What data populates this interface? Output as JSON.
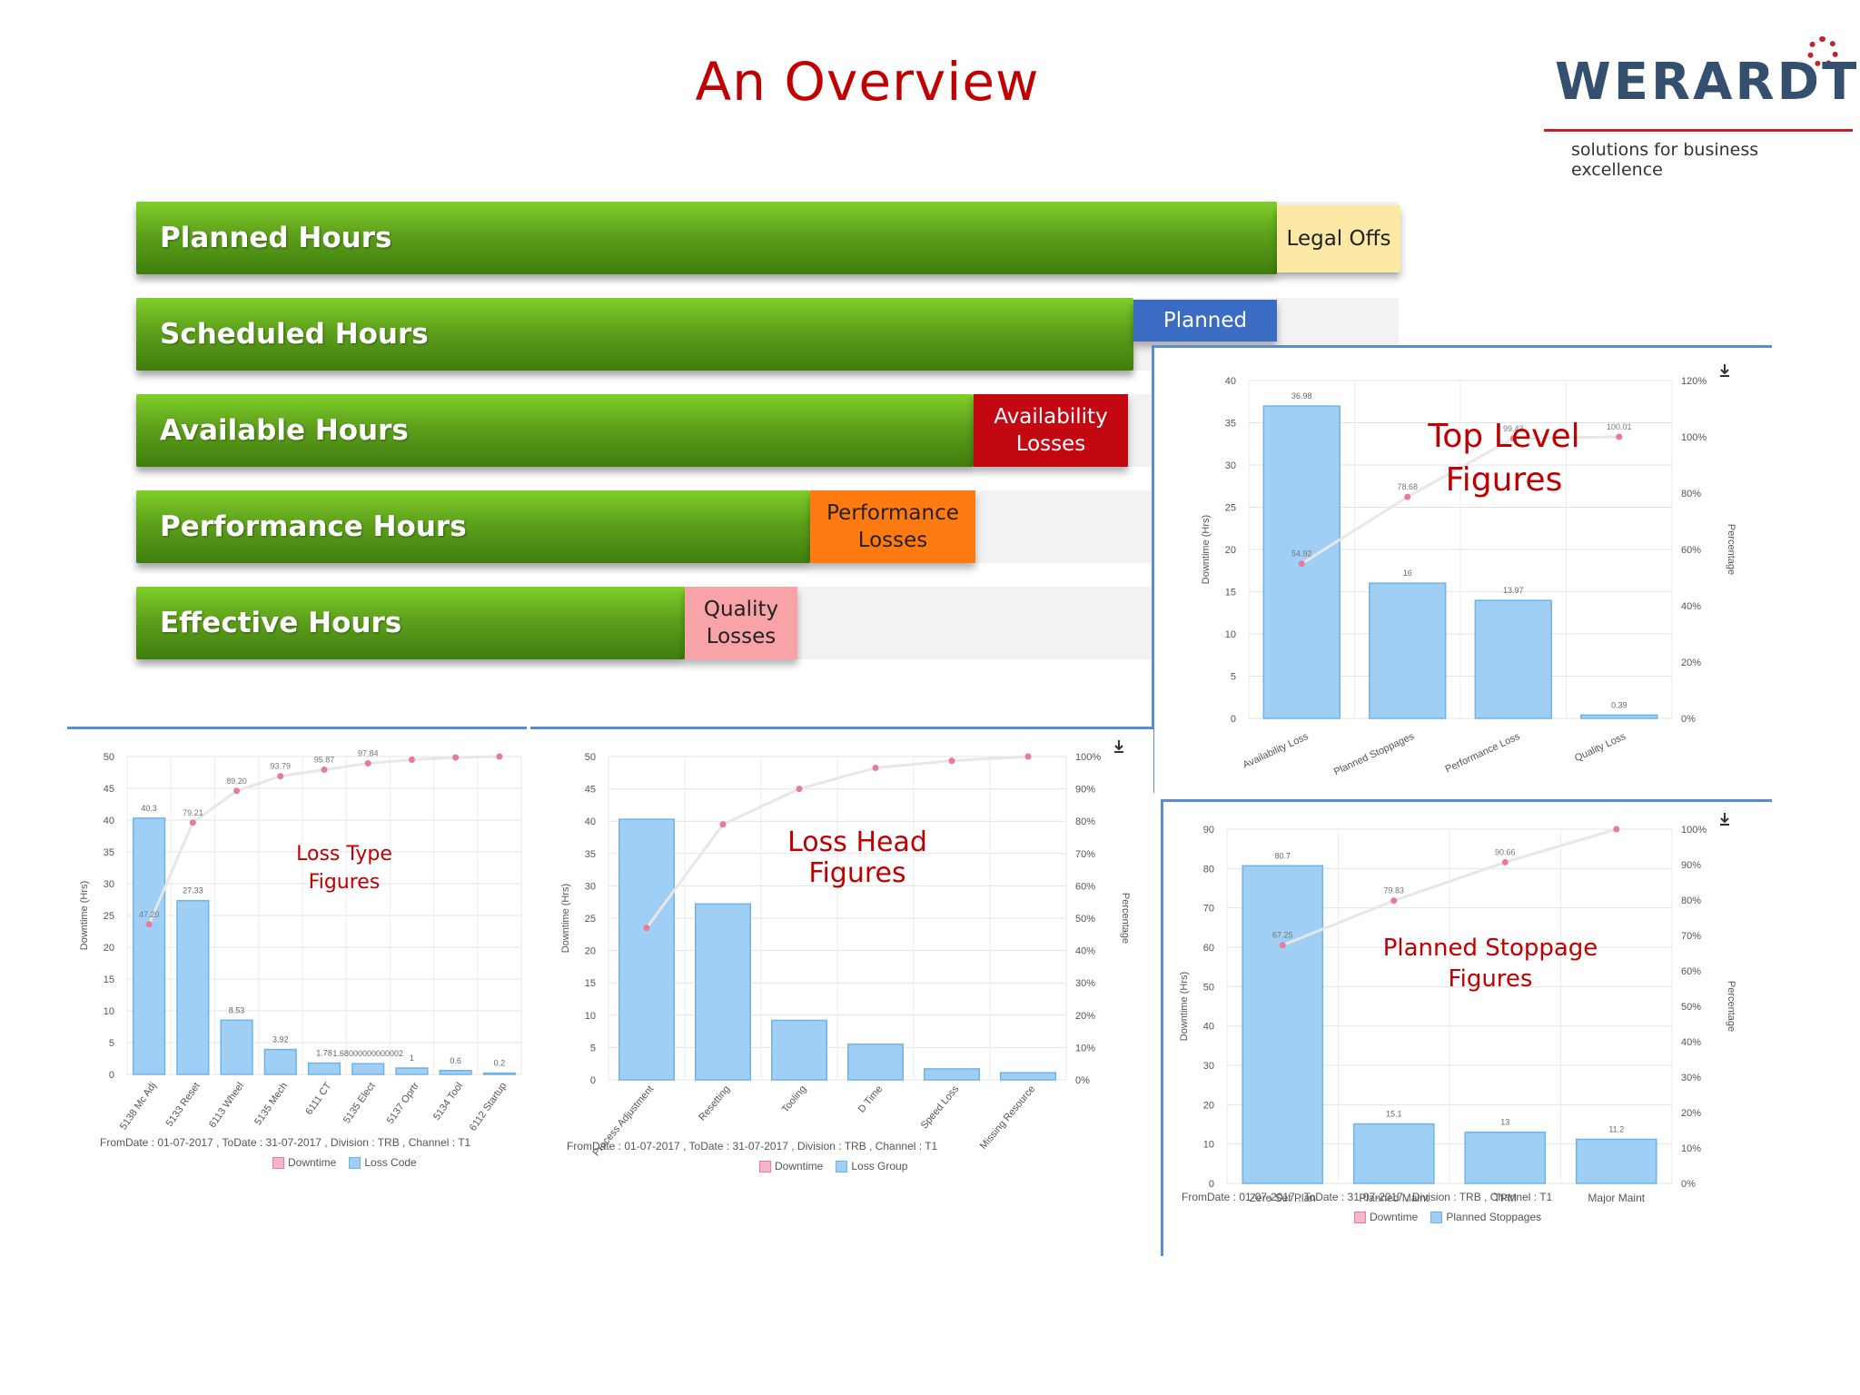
{
  "page": {
    "title": "An Overview"
  },
  "logo": {
    "name": "WERARDT",
    "tagline": "solutions for business excellence"
  },
  "hours": [
    {
      "label": "Planned Hours",
      "loss": "Legal Offs",
      "loss_color": "#fce9a6",
      "loss_text_color": "#222222"
    },
    {
      "label": "Scheduled Hours",
      "loss": "Planned",
      "loss_color": "#3b6cc4",
      "loss_text_color": "#ffffff"
    },
    {
      "label": "Available Hours",
      "loss": "Availability Losses",
      "loss_color": "#c40812",
      "loss_text_color": "#ffffff"
    },
    {
      "label": "Performance Hours",
      "loss": "Performance Losses",
      "loss_color": "#ff7a10",
      "loss_text_color": "#222222"
    },
    {
      "label": "Effective Hours",
      "loss": "Quality Losses",
      "loss_color": "#f7a3a7",
      "loss_text_color": "#222222"
    }
  ],
  "chart_data": [
    {
      "id": "top-level",
      "type": "bar",
      "title": "Top Level Figures",
      "categories": [
        "Availability Loss",
        "Planned Stoppages",
        "Performance Loss",
        "Quality Loss"
      ],
      "values": [
        36.98,
        16,
        13.97,
        0.39
      ],
      "value_labels": [
        "36.98",
        "16",
        "13.97",
        "0.39"
      ],
      "cumulative_percent": [
        54.92,
        78.68,
        99.43,
        100.01
      ],
      "cumulative_labels": [
        "54.92",
        "78.68",
        "99.43",
        "100.01"
      ],
      "ylabel": "Downtime (Hrs)",
      "y2label": "Percentage",
      "ylim": [
        0,
        40
      ],
      "yticks": [
        0,
        5,
        10,
        15,
        20,
        25,
        30,
        35,
        40
      ],
      "y2lim": [
        0,
        120
      ],
      "y2ticks": [
        "0%",
        "20%",
        "40%",
        "60%",
        "80%",
        "100%",
        "120%"
      ],
      "footer": "",
      "legend": [],
      "grid": true,
      "download_icon": true
    },
    {
      "id": "loss-type",
      "type": "bar",
      "title": "Loss Type Figures",
      "categories": [
        "5138 Mc Adj",
        "5133 Reset",
        "6113 Wheel",
        "5135 Mech",
        "6111 CT",
        "5135 Elect",
        "5137 Oprtr",
        "5134 Tool",
        "6112 Startup"
      ],
      "values": [
        40.3,
        27.33,
        8.53,
        3.92,
        1.78,
        1.68,
        1,
        0.6,
        0.2
      ],
      "value_labels": [
        "40.3",
        "27.33",
        "8.53",
        "3.92",
        "1.78",
        "1.68000000000002",
        "1",
        "0.6",
        "0.2"
      ],
      "cumulative_percent": [
        47.2,
        79.21,
        89.2,
        93.79,
        95.87,
        97.84,
        99.01,
        99.71,
        100
      ],
      "cumulative_labels": [
        "47.20",
        "79.21",
        "89.20",
        "93.79",
        "95.87",
        "97.84",
        "",
        "",
        ""
      ],
      "ylabel": "Downtime (Hrs)",
      "y2label": "",
      "ylim": [
        0,
        50
      ],
      "yticks": [
        0,
        5,
        10,
        15,
        20,
        25,
        30,
        35,
        40,
        45,
        50
      ],
      "y2lim": [
        0,
        100
      ],
      "y2ticks": [],
      "footer": "FromDate : 01-07-2017 , ToDate : 31-07-2017 , Division : TRB , Channel : T1",
      "legend": [
        "Downtime",
        "Loss Code"
      ],
      "grid": true,
      "download_icon": false
    },
    {
      "id": "loss-head",
      "type": "bar",
      "title": "Loss Head Figures",
      "categories": [
        "Process Adjustment",
        "Resetting",
        "Tooling",
        "D Time",
        "Speed Loss",
        "Missing Resource"
      ],
      "values": [
        40.3,
        27.2,
        9.2,
        5.5,
        1.7,
        1.1
      ],
      "value_labels": [],
      "cumulative_percent": [
        47,
        79,
        90,
        96.5,
        98.7,
        100
      ],
      "cumulative_labels": [],
      "ylabel": "Downtime (Hrs)",
      "y2label": "Percentage",
      "ylim": [
        0,
        50
      ],
      "yticks": [
        0,
        5,
        10,
        15,
        20,
        25,
        30,
        35,
        40,
        45,
        50
      ],
      "y2lim": [
        0,
        100
      ],
      "y2ticks": [
        "0%",
        "10%",
        "20%",
        "30%",
        "40%",
        "50%",
        "60%",
        "70%",
        "80%",
        "90%",
        "100%"
      ],
      "footer": "FromDate : 01-07-2017 , ToDate : 31-07-2017 , Division : TRB , Channel : T1",
      "legend": [
        "Downtime",
        "Loss Group"
      ],
      "grid": true,
      "download_icon": true
    },
    {
      "id": "planned-stoppage",
      "type": "bar",
      "title": "Planned Stoppage Figures",
      "categories": [
        "Zero Set Plan",
        "Planned Maint",
        "TPM",
        "Major Maint"
      ],
      "values": [
        80.7,
        15.1,
        13,
        11.2
      ],
      "value_labels": [
        "80.7",
        "15.1",
        "13",
        "11.2"
      ],
      "cumulative_percent": [
        67.25,
        79.83,
        90.66,
        100
      ],
      "cumulative_labels": [
        "67.25",
        "79.83",
        "90.66",
        ""
      ],
      "ylabel": "Downtime (Hrs)",
      "y2label": "Percentage",
      "ylim": [
        0,
        90
      ],
      "yticks": [
        0,
        10,
        20,
        30,
        40,
        50,
        60,
        70,
        80,
        90
      ],
      "y2lim": [
        0,
        100
      ],
      "y2ticks": [
        "0%",
        "10%",
        "20%",
        "30%",
        "40%",
        "50%",
        "60%",
        "70%",
        "80%",
        "90%",
        "100%"
      ],
      "footer": "FromDate : 01-07-2017 , ToDate : 31-07-2017 , Division : TRB , Channel : T1",
      "legend": [
        "Downtime",
        "Planned Stoppages"
      ],
      "grid": true,
      "download_icon": true
    }
  ],
  "colors": {
    "bar": "#9fcff5",
    "bar_stroke": "#6fb3e6",
    "line": "#e7e7e7",
    "point": "#e97a9a"
  }
}
